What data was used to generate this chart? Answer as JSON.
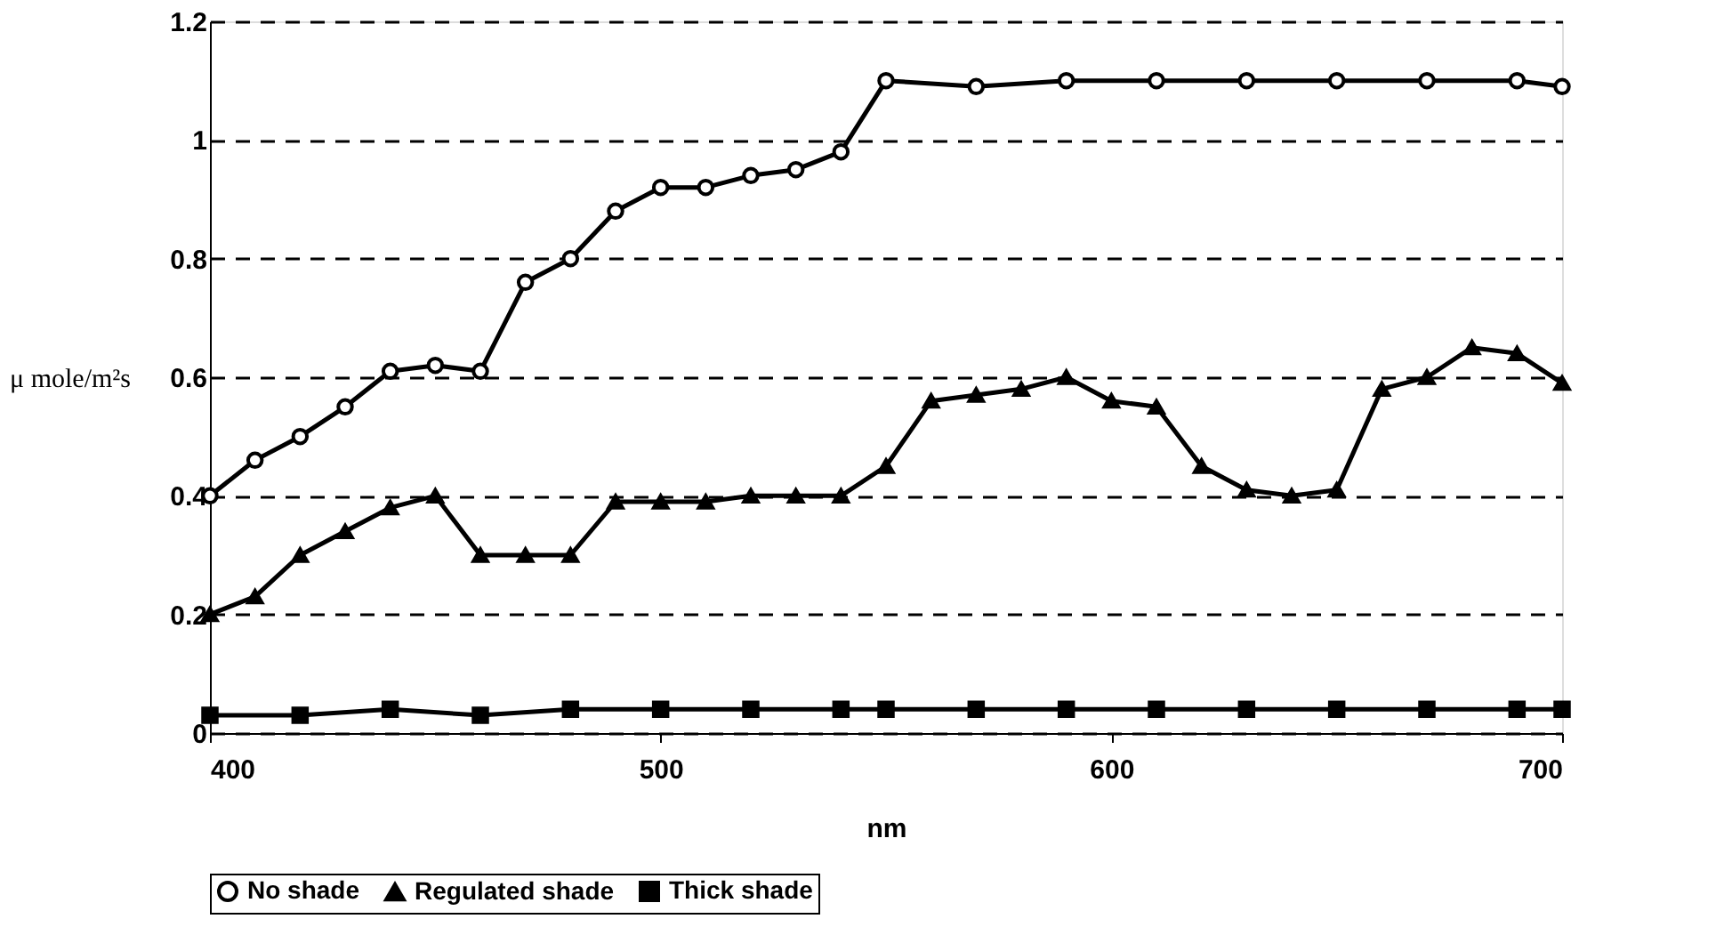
{
  "chart_data": {
    "type": "line",
    "xlabel": "nm",
    "ylabel": "μ mole/m²s",
    "xlim": [
      400,
      700
    ],
    "xticks": [
      400,
      500,
      600,
      700
    ],
    "ylim": [
      0,
      1.2
    ],
    "yticks": [
      0,
      0.2,
      0.4,
      0.6,
      0.8,
      1,
      1.2
    ],
    "grid": "y",
    "legend": "bottom",
    "line_style": "solid",
    "series": [
      {
        "name": "No shade",
        "color": "#000000",
        "marker": "circle",
        "x": [
          400,
          410,
          420,
          430,
          440,
          450,
          460,
          470,
          480,
          490,
          500,
          510,
          520,
          530,
          540,
          550,
          570,
          590,
          610,
          630,
          650,
          670,
          690,
          700
        ],
        "values": [
          0.4,
          0.46,
          0.5,
          0.55,
          0.61,
          0.62,
          0.61,
          0.76,
          0.8,
          0.88,
          0.92,
          0.92,
          0.94,
          0.95,
          0.98,
          1.1,
          1.09,
          1.1,
          1.1,
          1.1,
          1.1,
          1.1,
          1.1,
          1.09
        ]
      },
      {
        "name": "Regulated shade",
        "color": "#000000",
        "marker": "triangle",
        "x": [
          400,
          410,
          420,
          430,
          440,
          450,
          460,
          470,
          480,
          490,
          500,
          510,
          520,
          530,
          540,
          550,
          560,
          570,
          580,
          590,
          600,
          610,
          620,
          630,
          640,
          650,
          660,
          670,
          680,
          690,
          700
        ],
        "values": [
          0.2,
          0.23,
          0.3,
          0.34,
          0.38,
          0.4,
          0.3,
          0.3,
          0.3,
          0.39,
          0.39,
          0.39,
          0.4,
          0.4,
          0.4,
          0.45,
          0.56,
          0.57,
          0.58,
          0.6,
          0.56,
          0.55,
          0.45,
          0.41,
          0.4,
          0.41,
          0.58,
          0.6,
          0.65,
          0.64,
          0.59
        ]
      },
      {
        "name": "Thick shade",
        "color": "#000000",
        "marker": "square",
        "x": [
          400,
          420,
          440,
          460,
          480,
          500,
          520,
          540,
          550,
          570,
          590,
          610,
          630,
          650,
          670,
          690,
          700
        ],
        "values": [
          0.03,
          0.03,
          0.04,
          0.03,
          0.04,
          0.04,
          0.04,
          0.04,
          0.04,
          0.04,
          0.04,
          0.04,
          0.04,
          0.04,
          0.04,
          0.04,
          0.04
        ]
      }
    ]
  }
}
